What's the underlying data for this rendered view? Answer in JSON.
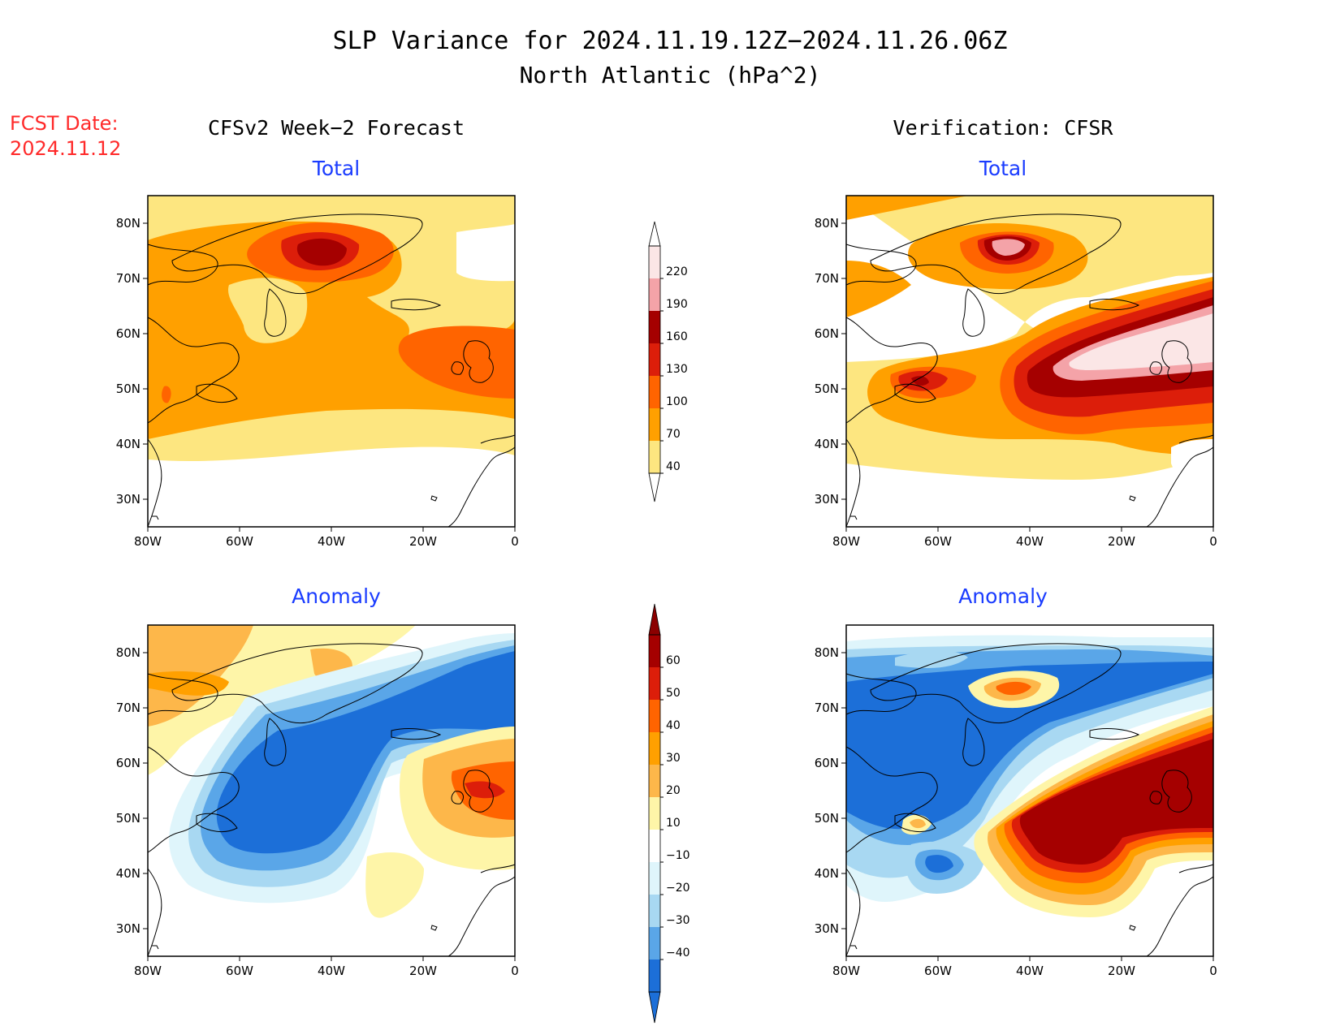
{
  "title": {
    "line1": "SLP Variance for 2024.11.19.12Z−2024.11.26.06Z",
    "line2": "North Atlantic (hPa^2)"
  },
  "fcst": {
    "label": "FCST Date:",
    "date": "2024.11.12"
  },
  "columns": {
    "left": "CFSv2 Week−2 Forecast",
    "right": "Verification: CFSR"
  },
  "panels": {
    "fcst_total": {
      "subtitle": "Total"
    },
    "verif_total": {
      "subtitle": "Total"
    },
    "fcst_anom": {
      "subtitle": "Anomaly"
    },
    "verif_anom": {
      "subtitle": "Anomaly"
    }
  },
  "axes": {
    "lon_labels": [
      "80W",
      "60W",
      "40W",
      "20W",
      "0"
    ],
    "lat_labels": [
      "80N",
      "70N",
      "60N",
      "50N",
      "40N",
      "30N"
    ],
    "lon_range": [
      -80,
      0
    ],
    "lat_range": [
      25,
      85
    ]
  },
  "colorbars": {
    "total": {
      "labels": [
        "220",
        "190",
        "160",
        "130",
        "100",
        "70",
        "40"
      ],
      "colors": [
        "#fbe6e6",
        "#f4a3a8",
        "#a50000",
        "#dc1e0a",
        "#ff6400",
        "#ffa000",
        "#fde680"
      ]
    },
    "anomaly": {
      "labels": [
        "60",
        "50",
        "40",
        "30",
        "20",
        "10",
        "−10",
        "−20",
        "−30",
        "−40"
      ],
      "colors": [
        "#a50000",
        "#dc1e0a",
        "#ff6400",
        "#ffa000",
        "#fdb74a",
        "#fef5a8",
        "#ffffff",
        "#dff5fb",
        "#a8d8f2",
        "#5aa6e8",
        "#1c6fd8"
      ]
    }
  }
}
